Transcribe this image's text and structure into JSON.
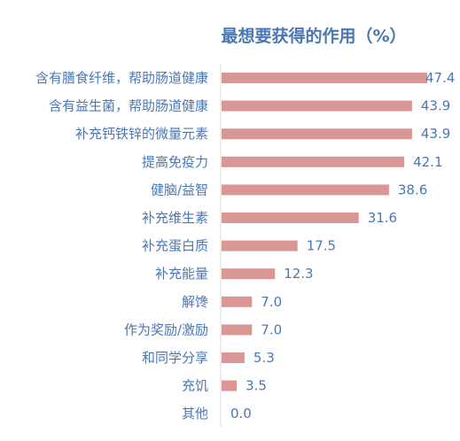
{
  "chart_data": {
    "type": "bar",
    "orientation": "horizontal",
    "title": "最想要获得的作用（%）",
    "categories": [
      "含有膳食纤维，帮助肠道健康",
      "含有益生菌，帮助肠道健康",
      "补充钙铁锌的微量元素",
      "提高免疫力",
      "健脑/益智",
      "补充维生素",
      "补充蛋白质",
      "补充能量",
      "解馋",
      "作为奖励/激励",
      "和同学分享",
      "充饥",
      "其他"
    ],
    "values": [
      47.4,
      43.9,
      43.9,
      42.1,
      38.6,
      31.6,
      17.5,
      12.3,
      7.0,
      7.0,
      5.3,
      3.5,
      0.0
    ],
    "value_labels": [
      "47.4",
      "43.9",
      "43.9",
      "42.1",
      "38.6",
      "31.6",
      "17.5",
      "12.3",
      "7.0",
      "7.0",
      "5.3",
      "3.5",
      "0.0"
    ],
    "xlim": [
      0,
      47.4
    ],
    "grid": false,
    "colors": {
      "bar": "#d99694",
      "text": "#4a78b4",
      "axis": "#d9d9d9"
    }
  }
}
